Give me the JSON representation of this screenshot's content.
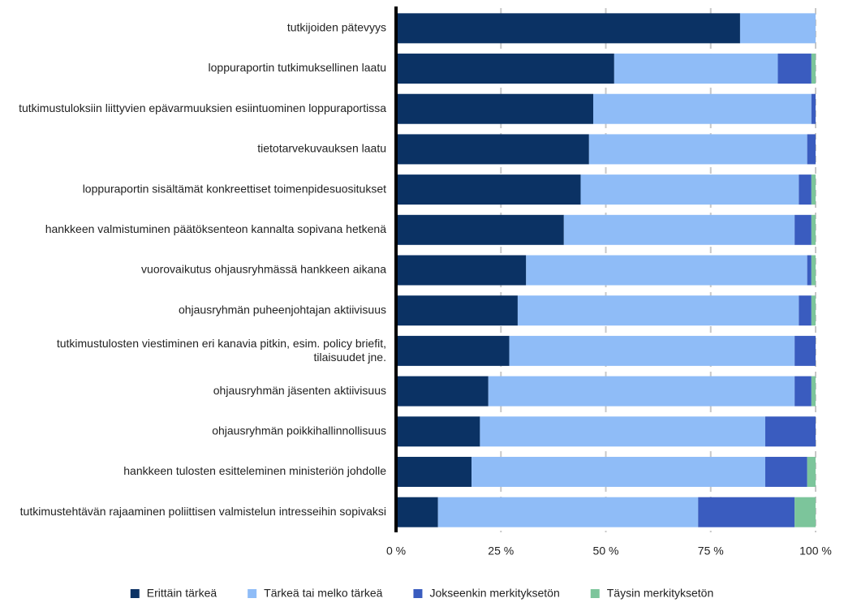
{
  "chart_data": {
    "type": "stacked-bar-horizontal",
    "categories": [
      "tutkijoiden pätevyys",
      "loppuraportin tutkimuksellinen laatu",
      "tutkimustuloksiin liittyvien epävarmuuksien esiintuominen loppuraportissa",
      "tietotarvekuvauksen laatu",
      "loppuraportin sisältämät konkreettiset toimenpidesuositukset",
      "hankkeen valmistuminen päätöksenteon kannalta sopivana hetkenä",
      "vuorovaikutus ohjausryhmässä hankkeen aikana",
      "ohjausryhmän puheenjohtajan aktiivisuus",
      "tutkimustulosten viestiminen eri kanavia pitkin, esim. policy briefit, tilaisuudet jne.",
      "ohjausryhmän jäsenten aktiivisuus",
      "ohjausryhmän poikkihallinnollisuus",
      "hankkeen tulosten esitteleminen ministeriön johdolle",
      "tutkimustehtävän rajaaminen poliittisen valmistelun intresseihin sopivaksi"
    ],
    "series": [
      {
        "name": "Erittäin tärkeä",
        "color": "#0b3264",
        "values": [
          82,
          52,
          47,
          46,
          44,
          40,
          31,
          29,
          27,
          22,
          20,
          18,
          10
        ]
      },
      {
        "name": "Tärkeä tai melko tärkeä",
        "color": "#8fbcf7",
        "values": [
          18,
          39,
          52,
          52,
          52,
          55,
          67,
          67,
          68,
          73,
          68,
          70,
          62
        ]
      },
      {
        "name": "Jokseenkin merkityksetön",
        "color": "#3a5cbf",
        "values": [
          0,
          8,
          1,
          2,
          3,
          4,
          1,
          3,
          5,
          4,
          12,
          10,
          23
        ]
      },
      {
        "name": "Täysin merkityksetön",
        "color": "#7cc59b",
        "values": [
          0,
          1,
          0,
          0,
          1,
          1,
          1,
          1,
          0,
          1,
          0,
          2,
          5
        ]
      }
    ],
    "xlim": [
      0,
      100
    ],
    "xticks": [
      {
        "value": 0,
        "label": "0 %"
      },
      {
        "value": 25,
        "label": "25 %"
      },
      {
        "value": 50,
        "label": "50 %"
      },
      {
        "value": 75,
        "label": "75 %"
      },
      {
        "value": 100,
        "label": "100 %"
      }
    ],
    "grid": true,
    "legend": "bottom"
  }
}
